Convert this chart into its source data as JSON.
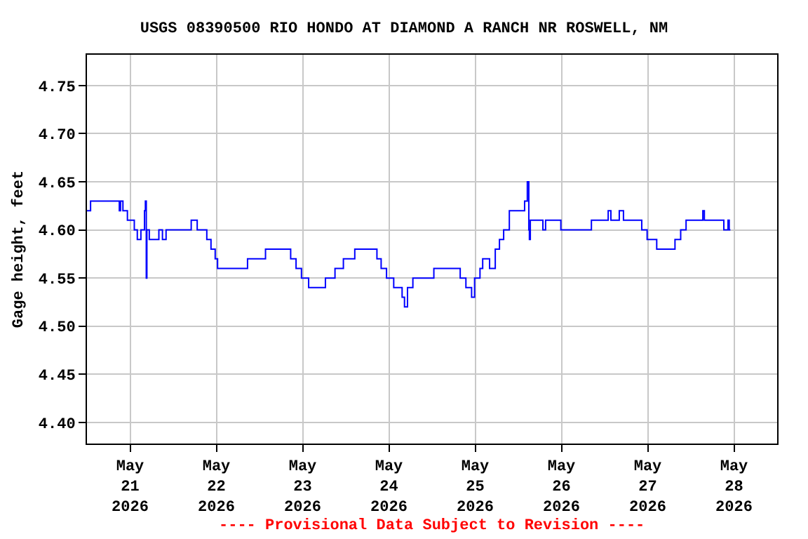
{
  "chart_data": {
    "type": "step",
    "title": "USGS 08390500 RIO HONDO AT DIAMOND A RANCH NR ROSWELL, NM",
    "ylabel": "Gage height, feet",
    "annotations": [
      "---- Provisional Data Subject to Revision ----"
    ],
    "x": [
      "2026-05-20T12:00",
      "2026-05-20T13:00",
      "2026-05-20T20:30",
      "2026-05-20T21:00",
      "2026-05-20T21:20",
      "2026-05-20T22:00",
      "2026-05-20T23:15",
      "2026-05-21T01:10",
      "2026-05-21T02:00",
      "2026-05-21T03:00",
      "2026-05-21T04:00",
      "2026-05-21T04:15",
      "2026-05-21T04:30",
      "2026-05-21T04:40",
      "2026-05-21T05:20",
      "2026-05-21T08:00",
      "2026-05-21T09:00",
      "2026-05-21T10:00",
      "2026-05-21T17:00",
      "2026-05-21T18:40",
      "2026-05-21T21:20",
      "2026-05-21T22:30",
      "2026-05-21T23:40",
      "2026-05-22T00:20",
      "2026-05-22T08:40",
      "2026-05-22T13:40",
      "2026-05-22T20:40",
      "2026-05-22T22:10",
      "2026-05-22T23:40",
      "2026-05-23T01:40",
      "2026-05-23T06:20",
      "2026-05-23T09:00",
      "2026-05-23T11:20",
      "2026-05-23T14:30",
      "2026-05-23T20:40",
      "2026-05-23T21:50",
      "2026-05-23T23:20",
      "2026-05-24T01:20",
      "2026-05-24T03:40",
      "2026-05-24T04:20",
      "2026-05-24T05:10",
      "2026-05-24T06:40",
      "2026-05-24T12:30",
      "2026-05-24T19:50",
      "2026-05-24T21:25",
      "2026-05-24T23:00",
      "2026-05-24T23:50",
      "2026-05-25T01:20",
      "2026-05-25T02:05",
      "2026-05-25T04:00",
      "2026-05-25T05:35",
      "2026-05-25T06:45",
      "2026-05-25T07:55",
      "2026-05-25T09:30",
      "2026-05-25T13:45",
      "2026-05-25T14:30",
      "2026-05-25T14:55",
      "2026-05-25T15:05",
      "2026-05-25T15:20",
      "2026-05-25T18:50",
      "2026-05-25T19:35",
      "2026-05-25T23:50",
      "2026-05-26T08:20",
      "2026-05-26T13:00",
      "2026-05-26T13:45",
      "2026-05-26T16:05",
      "2026-05-26T17:15",
      "2026-05-26T22:20",
      "2026-05-26T23:50",
      "2026-05-27T02:30",
      "2026-05-27T07:35",
      "2026-05-27T09:10",
      "2026-05-27T10:40",
      "2026-05-27T15:20",
      "2026-05-27T15:45",
      "2026-05-27T21:10",
      "2026-05-27T22:20",
      "2026-05-27T22:40",
      "2026-05-27T23:00"
    ],
    "series": [
      {
        "color": "#0000ff",
        "values": [
          4.62,
          4.63,
          4.63,
          4.62,
          4.63,
          4.62,
          4.61,
          4.6,
          4.59,
          4.6,
          4.62,
          4.63,
          4.55,
          4.6,
          4.59,
          4.6,
          4.59,
          4.6,
          4.61,
          4.6,
          4.59,
          4.58,
          4.57,
          4.56,
          4.57,
          4.58,
          4.57,
          4.56,
          4.55,
          4.54,
          4.55,
          4.56,
          4.57,
          4.58,
          4.57,
          4.56,
          4.55,
          4.54,
          4.53,
          4.52,
          4.54,
          4.55,
          4.56,
          4.55,
          4.54,
          4.53,
          4.55,
          4.56,
          4.57,
          4.56,
          4.58,
          4.59,
          4.6,
          4.62,
          4.63,
          4.65,
          4.6,
          4.59,
          4.61,
          4.6,
          4.61,
          4.6,
          4.61,
          4.62,
          4.61,
          4.62,
          4.61,
          4.6,
          4.59,
          4.58,
          4.59,
          4.6,
          4.61,
          4.62,
          4.61,
          4.6,
          4.61,
          4.6,
          4.6
        ]
      }
    ],
    "xlim": [
      "2026-05-20T12:00",
      "2026-05-28T12:00"
    ],
    "xticks": [
      {
        "value": "2026-05-21",
        "label": "May\n21\n2026"
      },
      {
        "value": "2026-05-22",
        "label": "May\n22\n2026"
      },
      {
        "value": "2026-05-23",
        "label": "May\n23\n2026"
      },
      {
        "value": "2026-05-24",
        "label": "May\n24\n2026"
      },
      {
        "value": "2026-05-25",
        "label": "May\n25\n2026"
      },
      {
        "value": "2026-05-26",
        "label": "May\n26\n2026"
      },
      {
        "value": "2026-05-27",
        "label": "May\n27\n2026"
      },
      {
        "value": "2026-05-28",
        "label": "May\n28\n2026"
      }
    ],
    "ylim": [
      4.378,
      4.782
    ],
    "yticks": [
      {
        "value": 4.4,
        "label": "4.40"
      },
      {
        "value": 4.45,
        "label": "4.45"
      },
      {
        "value": 4.5,
        "label": "4.50"
      },
      {
        "value": 4.55,
        "label": "4.55"
      },
      {
        "value": 4.6,
        "label": "4.60"
      },
      {
        "value": 4.65,
        "label": "4.65"
      },
      {
        "value": 4.7,
        "label": "4.70"
      },
      {
        "value": 4.75,
        "label": "4.75"
      }
    ],
    "grid": true
  }
}
